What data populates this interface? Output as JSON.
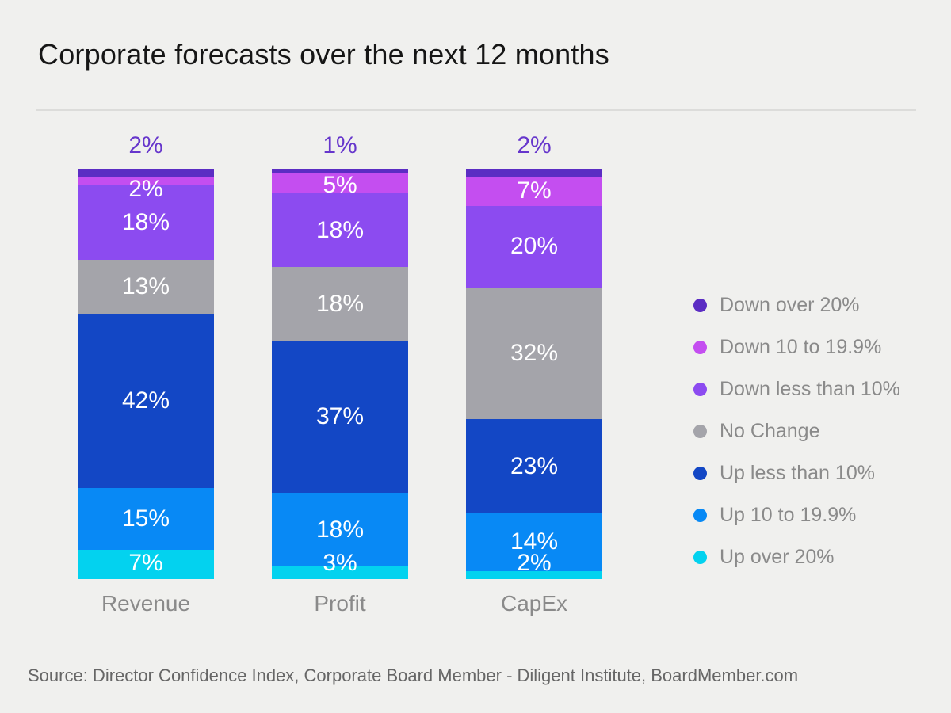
{
  "title": "Corporate forecasts over the next 12 months",
  "source": "Source: Director Confidence Index, Corporate Board Member - Diligent Institute, BoardMember.com",
  "chart_data": {
    "type": "bar",
    "stacked": true,
    "value_suffix": "%",
    "categories": [
      "Revenue",
      "Profit",
      "CapEx"
    ],
    "series": [
      {
        "name": "Down over 20%",
        "color": "#5b2dc3",
        "values": [
          2,
          1,
          2
        ],
        "label_position": "above"
      },
      {
        "name": "Down 10 to 19.9%",
        "color": "#c44ef0",
        "values": [
          2,
          5,
          7
        ],
        "label_position": "inside"
      },
      {
        "name": "Down less than 10%",
        "color": "#8c4bf0",
        "values": [
          18,
          18,
          20
        ],
        "label_position": "inside"
      },
      {
        "name": "No Change",
        "color": "#a4a4aa",
        "values": [
          13,
          18,
          32
        ],
        "label_position": "inside"
      },
      {
        "name": "Up less than 10%",
        "color": "#1347c5",
        "values": [
          42,
          37,
          23
        ],
        "label_position": "inside"
      },
      {
        "name": "Up 10 to 19.9%",
        "color": "#0889f5",
        "values": [
          15,
          18,
          14
        ],
        "label_position": "inside"
      },
      {
        "name": "Up over 20%",
        "color": "#03d2ef",
        "values": [
          7,
          3,
          2
        ],
        "label_position": "inside"
      }
    ],
    "legend_position": "right",
    "grid": false,
    "ylim": [
      0,
      100
    ],
    "colors": {
      "above_label": "#6636cc",
      "inside_label": "#ffffff",
      "axis_label": "#8a8a8a",
      "legend_text": "#8a8a8a",
      "title": "#161616",
      "source_text": "#666666",
      "background": "#f0f0ee",
      "divider": "#dcdcda"
    }
  }
}
